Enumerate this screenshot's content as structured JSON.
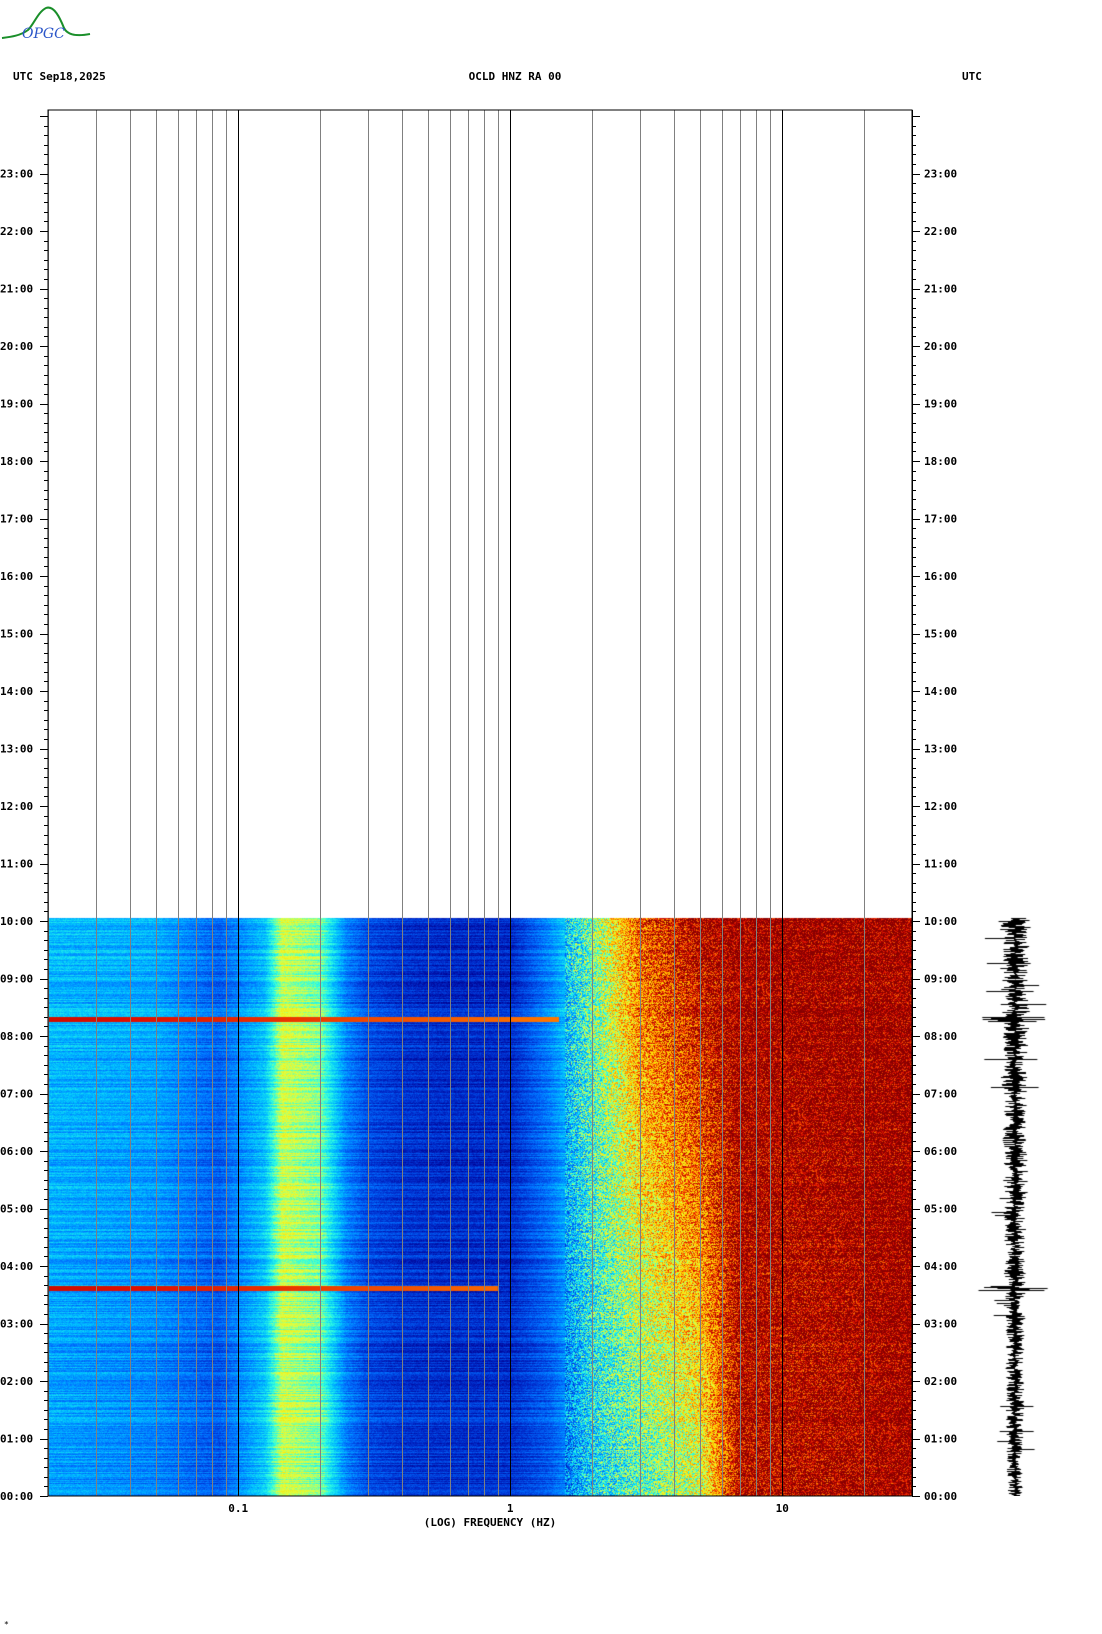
{
  "header": {
    "left": "UTC  Sep18,2025",
    "center": "OCLD HNZ RA 00",
    "right": "UTC"
  },
  "logo_text": "OPGC",
  "colors": {
    "colormap": [
      "#000090",
      "#0030d0",
      "#0070ff",
      "#00c0ff",
      "#30ffe0",
      "#e0ff40",
      "#ffe000",
      "#ff8000",
      "#e01000",
      "#880000"
    ],
    "saturated": "#880000",
    "grid": "#808080",
    "decade_grid": "#000000"
  },
  "chart_data": {
    "type": "heatmap",
    "title": "OCLD HNZ RA 00",
    "date": "Sep18,2025",
    "timezone": "UTC",
    "xlabel": "(LOG) FREQUENCY (HZ)",
    "x_scale": "log",
    "xlim": [
      0.02,
      30
    ],
    "x_ticks": [
      0.1,
      1,
      10
    ],
    "x_tick_labels": [
      "0.1",
      "1",
      "10"
    ],
    "ylim_hours": [
      0,
      24
    ],
    "y_tick_hours": [
      0,
      1,
      2,
      3,
      4,
      5,
      6,
      7,
      8,
      9,
      10,
      11,
      12,
      13,
      14,
      15,
      16,
      17,
      18,
      19,
      20,
      21,
      22,
      23
    ],
    "y_tick_labels": [
      "00:00",
      "01:00",
      "02:00",
      "03:00",
      "04:00",
      "05:00",
      "06:00",
      "07:00",
      "08:00",
      "09:00",
      "10:00",
      "11:00",
      "12:00",
      "13:00",
      "14:00",
      "15:00",
      "16:00",
      "17:00",
      "18:00",
      "19:00",
      "20:00",
      "21:00",
      "22:00",
      "23:00"
    ],
    "data_end_hour": 10.05,
    "spectral_level_profile": {
      "freq_hz": [
        0.02,
        0.05,
        0.085,
        0.125,
        0.145,
        0.2,
        0.25,
        0.3,
        0.4,
        0.6,
        1.0,
        1.4,
        2.0,
        3.0,
        5.0,
        7.0,
        10.0,
        30.0
      ],
      "level_start": [
        2.6,
        2.2,
        1.6,
        3.2,
        5.0,
        4.4,
        2.2,
        1.4,
        1.1,
        1.0,
        1.0,
        1.6,
        3.2,
        4.0,
        5.2,
        8.5,
        8.5,
        9.0
      ],
      "level_end": [
        3.0,
        2.8,
        1.8,
        3.0,
        5.0,
        4.4,
        2.2,
        1.4,
        1.0,
        0.8,
        0.8,
        2.4,
        4.5,
        7.4,
        8.8,
        9.0,
        9.0,
        9.0
      ]
    },
    "transient_events": [
      {
        "hour": 8.3,
        "fmax_hz": 1.5
      },
      {
        "hour": 3.62,
        "fmax_hz": 0.9
      }
    ],
    "seismogram_trace": {
      "start_hour": 0,
      "end_hour": 10.05
    }
  }
}
